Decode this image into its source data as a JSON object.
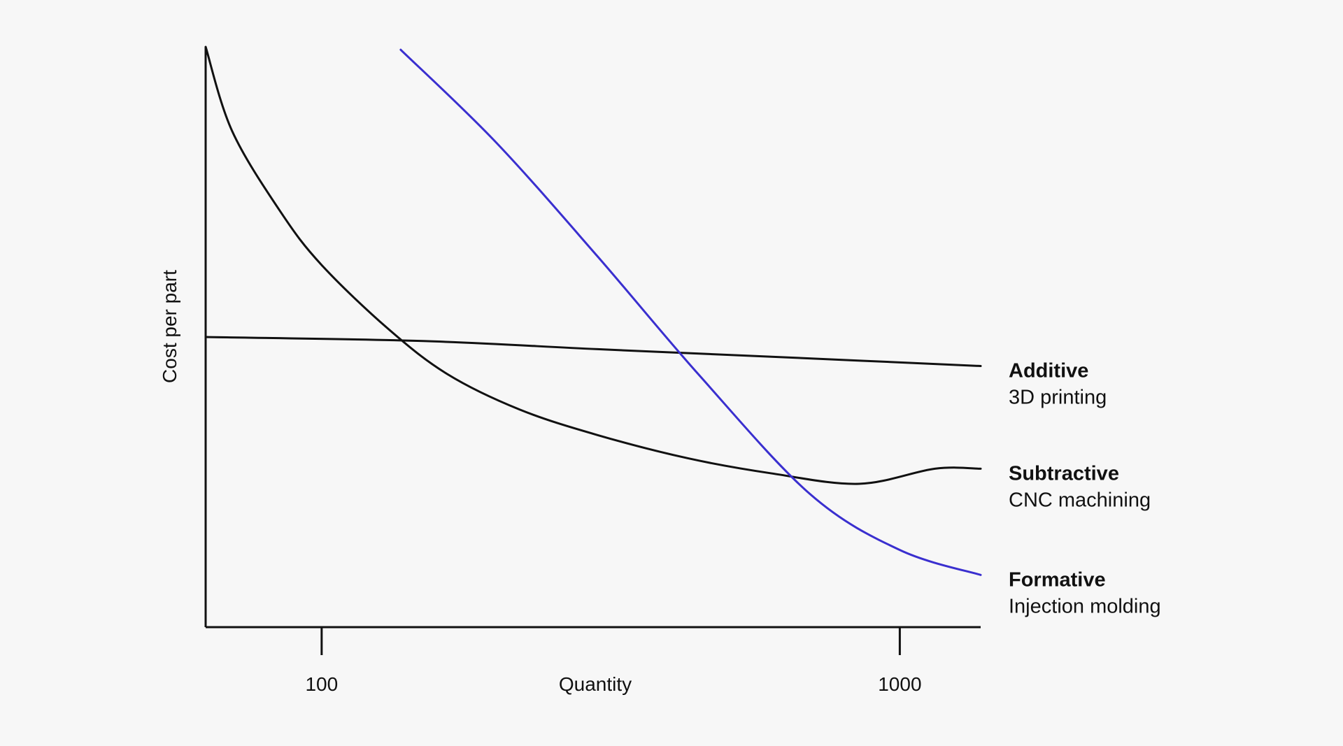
{
  "chart_data": {
    "type": "line",
    "title": "",
    "xlabel": "Quantity",
    "ylabel": "Cost per part",
    "x_scale": "log",
    "xlim": [
      63,
      1380
    ],
    "ylim": [
      0,
      100
    ],
    "x_ticks": [
      {
        "value": 100,
        "label": "100"
      },
      {
        "value": 1000,
        "label": "1000"
      }
    ],
    "y_ticks": [],
    "grid": false,
    "legend_position": "right",
    "series": [
      {
        "key": "additive",
        "name": "Additive",
        "subtitle": "3D printing",
        "color": "#111111",
        "x": [
          63,
          150,
          300,
          600,
          1380
        ],
        "y": [
          50,
          49.3,
          47.9,
          46.6,
          45
        ]
      },
      {
        "key": "subtractive",
        "name": "Subtractive",
        "subtitle": "CNC machining",
        "color": "#111111",
        "x": [
          63,
          70,
          85,
          100,
          130,
          165,
          220,
          300,
          430,
          600,
          850,
          1150,
          1380
        ],
        "y": [
          100,
          85.5,
          71.5,
          62.4,
          51.5,
          43.6,
          37.5,
          33.1,
          29.1,
          26.5,
          24.7,
          27.3,
          27.3
        ]
      },
      {
        "key": "formative",
        "name": "Formative",
        "subtitle": "Injection molding",
        "color": "#3a2fcf",
        "x": [
          137,
          200,
          300,
          450,
          700,
          1000,
          1380
        ],
        "y": [
          99.5,
          83.6,
          63.9,
          43.4,
          22.9,
          13.3,
          9
        ]
      }
    ]
  }
}
